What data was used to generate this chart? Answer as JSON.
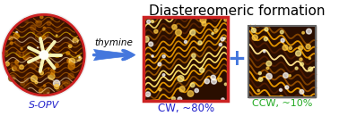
{
  "title": "Diastereomeric formation",
  "title_fontsize": 11,
  "title_color": "#000000",
  "label_sopv": "S-OPV",
  "label_sopv_color": "#2222cc",
  "label_cw": "CW, ~80%",
  "label_cw_color": "#2222cc",
  "label_ccw": "CCW, ~10%",
  "label_ccw_color": "#22aa22",
  "label_thymine": "thymine",
  "label_thymine_color": "#000000",
  "background_color": "#ffffff",
  "arrow_color": "#4477dd",
  "plus_color": "#4477dd",
  "circle_border_color": "#cc2222",
  "rect1_border_color": "#cc2222",
  "rect2_border_color": "#888888",
  "img_bg_dark": "#3a1a00",
  "img_bg_mid": "#8b4500",
  "img_highlight": "#ffd700"
}
